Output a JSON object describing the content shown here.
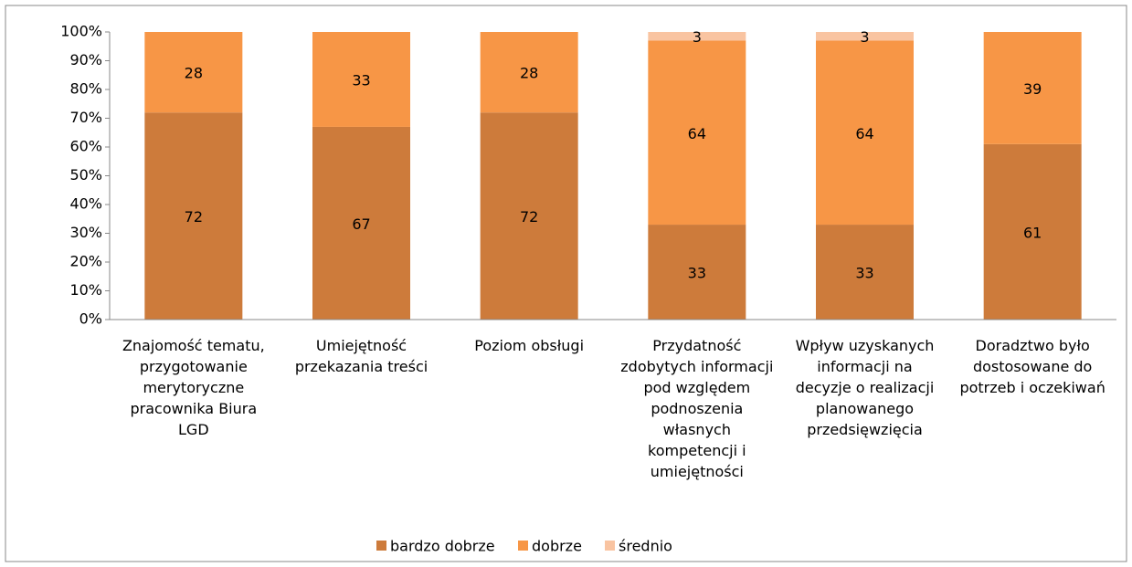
{
  "chart_data": {
    "type": "stacked_bar",
    "categories": [
      "Znajomość tematu, przygotowanie merytoryczne pracownika Biura LGD",
      "Umiejętność przekazania treści",
      "Poziom obsługi",
      "Przydatność zdobytych informacji pod względem podnoszenia własnych kompetencji i umiejętności",
      "Wpływ uzyskanych informacji na decyzje o realizacji planowanego przedsięwzięcia",
      "Doradztwo było dostosowane do potrzeb i oczekiwań"
    ],
    "series": [
      {
        "name": "bardzo dobrze",
        "color": "#cd7b3b",
        "values": [
          72,
          67,
          72,
          33,
          33,
          61
        ]
      },
      {
        "name": "dobrze",
        "color": "#f79646",
        "values": [
          28,
          33,
          28,
          64,
          64,
          39
        ]
      },
      {
        "name": "średnio",
        "color": "#f9c4a1",
        "values": [
          null,
          null,
          null,
          3,
          3,
          null
        ]
      }
    ],
    "ylim": [
      0,
      100
    ],
    "yticks": [
      {
        "value": 0,
        "label": "0%"
      },
      {
        "value": 10,
        "label": "10%"
      },
      {
        "value": 20,
        "label": "20%"
      },
      {
        "value": 30,
        "label": "30%"
      },
      {
        "value": 40,
        "label": "40%"
      },
      {
        "value": 50,
        "label": "50%"
      },
      {
        "value": 60,
        "label": "60%"
      },
      {
        "value": 70,
        "label": "70%"
      },
      {
        "value": 80,
        "label": "80%"
      },
      {
        "value": 90,
        "label": "90%"
      },
      {
        "value": 100,
        "label": "100%"
      }
    ],
    "legend": "bottom"
  }
}
